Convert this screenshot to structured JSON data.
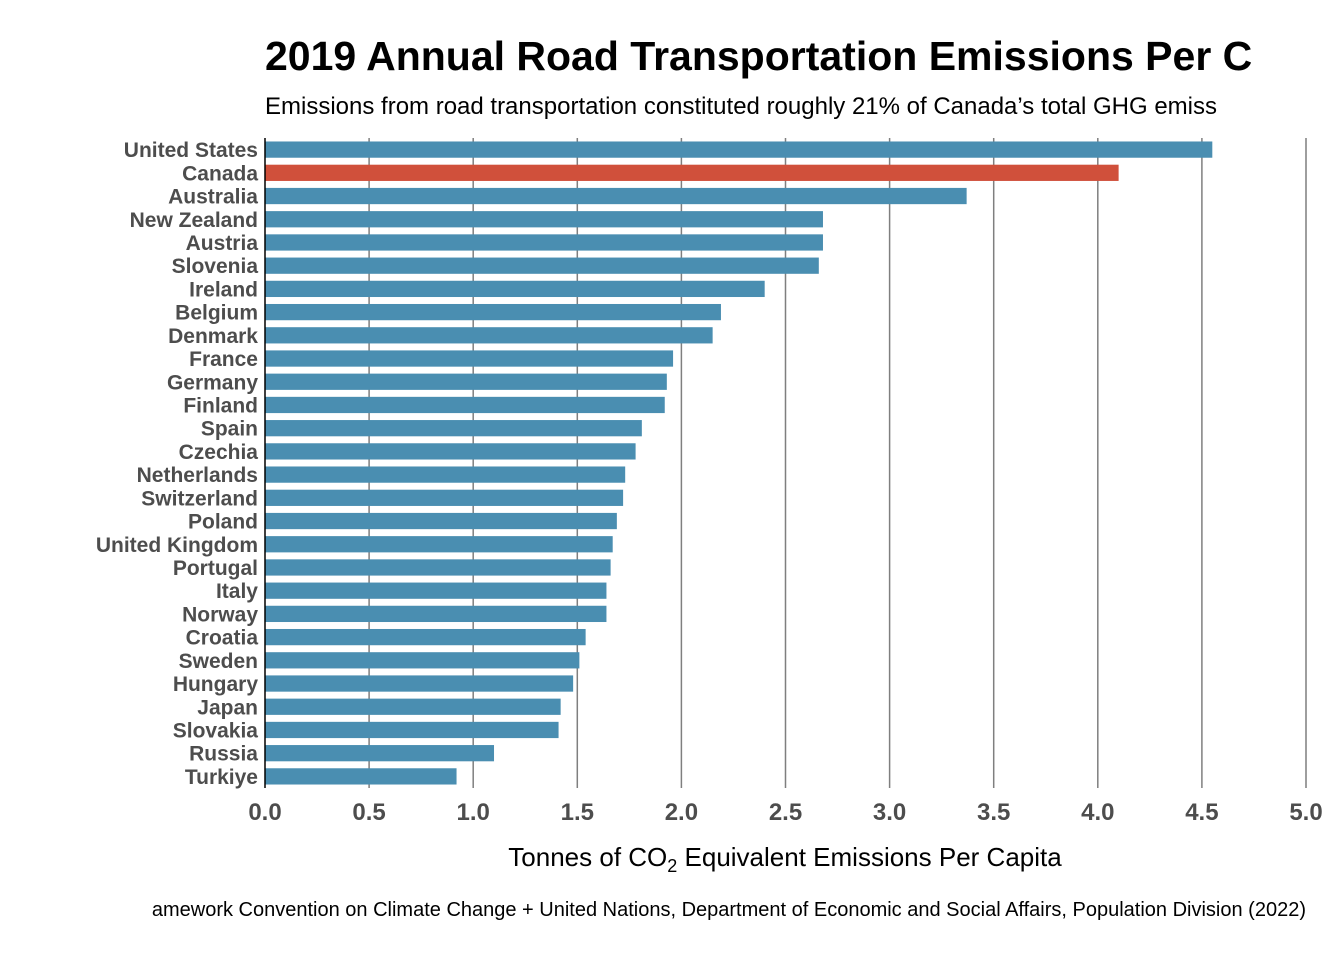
{
  "chart_data": {
    "type": "bar",
    "orientation": "horizontal",
    "title": "2019 Annual Road Transportation Emissions Per C",
    "subtitle": "Emissions from road transportation constituted roughly 21% of Canada’s total GHG emiss",
    "caption": "amework Convention on Climate Change + United Nations, Department of Economic and Social Affairs, Population Division (2022)",
    "xlabel": {
      "prefix": "Tonnes of CO",
      "subscript": "2",
      "suffix": " Equivalent Emissions Per Capita"
    },
    "ylabel": "",
    "xlim": [
      0,
      5.0
    ],
    "xticks": [
      "0.0",
      "0.5",
      "1.0",
      "1.5",
      "2.0",
      "2.5",
      "3.0",
      "3.5",
      "4.0",
      "4.5",
      "5.0"
    ],
    "grid": "vertical",
    "categories": [
      "United States",
      "Canada",
      "Australia",
      "New Zealand",
      "Austria",
      "Slovenia",
      "Ireland",
      "Belgium",
      "Denmark",
      "France",
      "Germany",
      "Finland",
      "Spain",
      "Czechia",
      "Netherlands",
      "Switzerland",
      "Poland",
      "United Kingdom",
      "Portugal",
      "Italy",
      "Norway",
      "Croatia",
      "Sweden",
      "Hungary",
      "Japan",
      "Slovakia",
      "Russia",
      "Turkiye"
    ],
    "values": [
      4.55,
      4.1,
      3.37,
      2.68,
      2.68,
      2.66,
      2.4,
      2.19,
      2.15,
      1.96,
      1.93,
      1.92,
      1.81,
      1.78,
      1.73,
      1.72,
      1.69,
      1.67,
      1.66,
      1.64,
      1.64,
      1.54,
      1.51,
      1.48,
      1.42,
      1.41,
      1.1,
      0.92
    ],
    "highlight": "Canada",
    "colors": {
      "bar": "#4a8eb1",
      "highlight": "#d0503b",
      "grid": "#7f7f7f",
      "axis": "#000000"
    }
  }
}
